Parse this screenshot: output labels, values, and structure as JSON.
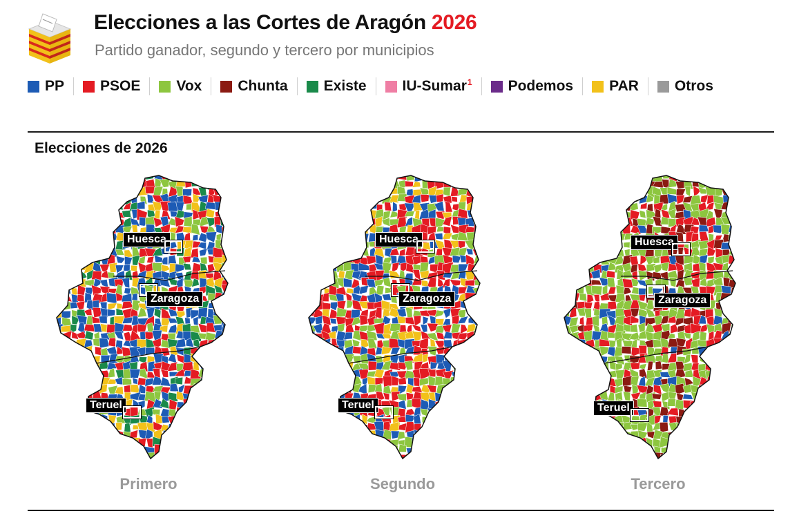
{
  "header": {
    "title": "Elecciones a las Cortes de Aragón",
    "title_year": "2026",
    "subtitle": "Partido ganador, segundo y tercero por municipios"
  },
  "legend": [
    {
      "label": "PP",
      "color": "#1d5bb5"
    },
    {
      "label": "PSOE",
      "color": "#e41b23"
    },
    {
      "label": "Vox",
      "color": "#8dc63f"
    },
    {
      "label": "Chunta",
      "color": "#8b1a12"
    },
    {
      "label": "Existe",
      "color": "#1a8a4a"
    },
    {
      "label": "IU-Sumar",
      "color": "#ef7ea4",
      "sup": "1"
    },
    {
      "label": "Podemos",
      "color": "#6b2c8a"
    },
    {
      "label": "PAR",
      "color": "#f2c11a"
    },
    {
      "label": "Otros",
      "color": "#9a9a9a"
    }
  ],
  "section": {
    "title": "Elecciones de 2026"
  },
  "maps": [
    {
      "caption": "Primero",
      "palette": [
        "#1d5bb5",
        "#1d5bb5",
        "#1d5bb5",
        "#e41b23",
        "#e41b23",
        "#8dc63f",
        "#f2c11a",
        "#1a8a4a"
      ]
    },
    {
      "caption": "Segundo",
      "palette": [
        "#e41b23",
        "#e41b23",
        "#e41b23",
        "#1d5bb5",
        "#1d5bb5",
        "#8dc63f",
        "#8dc63f",
        "#f2c11a"
      ]
    },
    {
      "caption": "Tercero",
      "palette": [
        "#8dc63f",
        "#8dc63f",
        "#8dc63f",
        "#8dc63f",
        "#e41b23",
        "#e41b23",
        "#8b1a12",
        "#1d5bb5"
      ]
    }
  ],
  "cities": {
    "huesca": "Huesca",
    "zaragoza": "Zaragoza",
    "teruel": "Teruel"
  }
}
